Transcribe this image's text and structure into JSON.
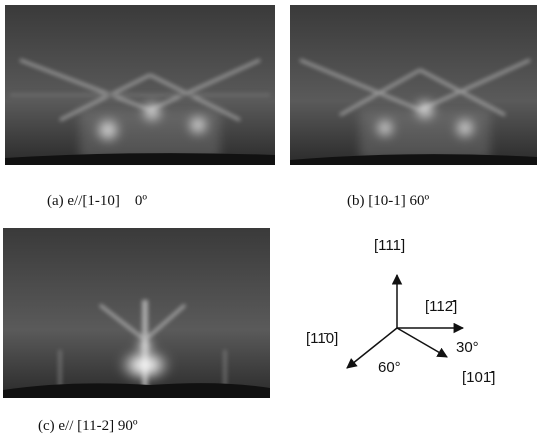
{
  "figure": {
    "panels": [
      {
        "caption": "(a) e//[1-10]    0º"
      },
      {
        "caption": "(b) [10-1] 60º"
      },
      {
        "caption": "(c) e// [11-2] 90º"
      }
    ],
    "diagram": {
      "axes": [
        "[111]",
        "[112̄]",
        "[11̄0]",
        "[101̄]"
      ],
      "angles": [
        "30°",
        "60°"
      ]
    }
  }
}
